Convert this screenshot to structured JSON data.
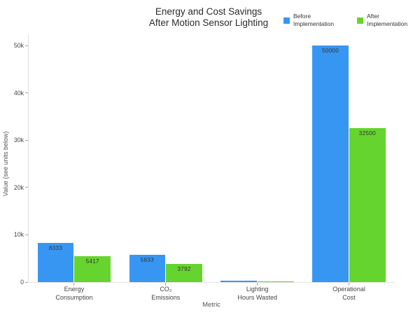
{
  "title": {
    "line1": "Energy and Cost Savings",
    "line2": "After Motion Sensor Lighting"
  },
  "axes": {
    "x_title": "Metric",
    "y_title": "Value (see units below)",
    "y_ticks": [
      {
        "value": 0,
        "label": "0"
      },
      {
        "value": 10000,
        "label": "10k"
      },
      {
        "value": 20000,
        "label": "20k"
      },
      {
        "value": 30000,
        "label": "30k"
      },
      {
        "value": 40000,
        "label": "40k"
      },
      {
        "value": 50000,
        "label": "50k"
      }
    ]
  },
  "legend": {
    "items": [
      {
        "label": "Before Implementation",
        "color": "#3896F3"
      },
      {
        "label": "After Implementation",
        "color": "#66D42E"
      }
    ]
  },
  "chart_data": {
    "type": "bar",
    "title": "Energy and Cost Savings After Motion Sensor Lighting",
    "xlabel": "Metric",
    "ylabel": "Value (see units below)",
    "categories": [
      "Energy Consumption",
      "CO₂ Emissions",
      "Lighting Hours Wasted",
      "Operational Cost"
    ],
    "series": [
      {
        "name": "Before Implementation",
        "color": "#3896F3",
        "values": [
          8333,
          5833,
          250,
          50000
        ]
      },
      {
        "name": "After Implementation",
        "color": "#66D42E",
        "values": [
          5417,
          3792,
          83,
          32500
        ]
      }
    ],
    "ylim": [
      0,
      50000
    ],
    "bar_labels": true,
    "grid": false,
    "legend_position": "top-right"
  }
}
